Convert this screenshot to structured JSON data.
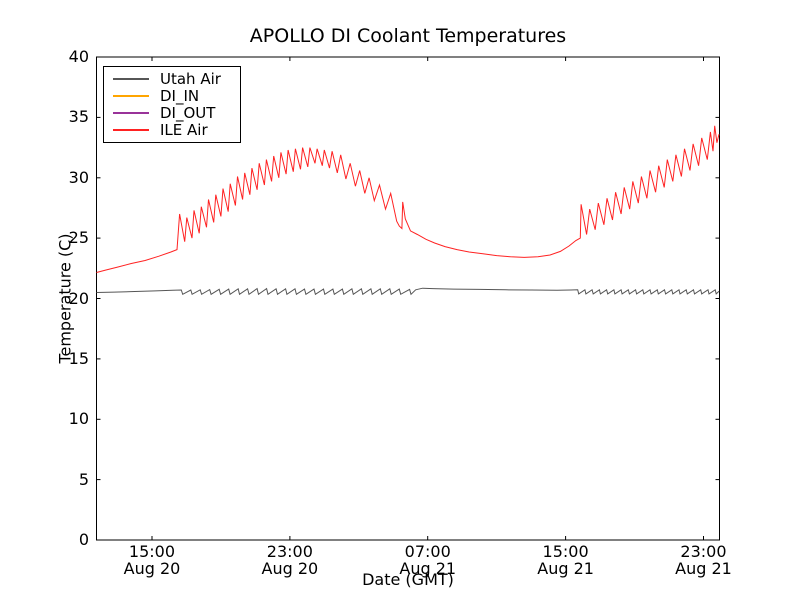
{
  "chart": {
    "title": "APOLLO DI Coolant Temperatures",
    "xlabel": "Date (GMT)",
    "ylabel": "Temperature (C)"
  },
  "legend": {
    "items": [
      {
        "label": "Utah Air",
        "color": "#565656"
      },
      {
        "label": "DI_IN",
        "color": "#ffa500"
      },
      {
        "label": "DI_OUT",
        "color": "#993399"
      },
      {
        "label": "ILE Air",
        "color": "#ff2222"
      }
    ]
  },
  "chart_data": {
    "type": "line",
    "title": "APOLLO DI Coolant Temperatures",
    "xlabel": "Date (GMT)",
    "ylabel": "Temperature (C)",
    "grid": false,
    "legend_position": "upper left",
    "ylim": [
      0,
      40
    ],
    "y_ticks": [
      0,
      5,
      10,
      15,
      20,
      25,
      30,
      35,
      40
    ],
    "x_units": "hours since Aug 20 00:00 GMT",
    "xlim_hours": [
      11.78,
      47.93
    ],
    "x_tick_hours": [
      15,
      23,
      31,
      39,
      47
    ],
    "x_ticks": [
      {
        "t": 15,
        "time": "15:00",
        "date": "Aug 20"
      },
      {
        "t": 23,
        "time": "23:00",
        "date": "Aug 20"
      },
      {
        "t": 31,
        "time": "07:00",
        "date": "Aug 21"
      },
      {
        "t": 39,
        "time": "15:00",
        "date": "Aug 21"
      },
      {
        "t": 47,
        "time": "23:00",
        "date": "Aug 21"
      }
    ],
    "series": [
      {
        "name": "Utah Air",
        "color": "#565656",
        "points": [
          [
            11.78,
            20.5
          ],
          [
            12.8,
            20.53
          ],
          [
            14.0,
            20.58
          ],
          [
            15.2,
            20.63
          ],
          [
            16.2,
            20.68
          ],
          [
            16.7,
            20.7
          ],
          [
            16.78,
            20.35
          ],
          [
            17.25,
            20.7
          ],
          [
            17.33,
            20.35
          ],
          [
            17.8,
            20.72
          ],
          [
            17.88,
            20.35
          ],
          [
            18.35,
            20.74
          ],
          [
            18.43,
            20.35
          ],
          [
            18.9,
            20.76
          ],
          [
            18.98,
            20.35
          ],
          [
            19.45,
            20.78
          ],
          [
            19.53,
            20.35
          ],
          [
            20.0,
            20.8
          ],
          [
            20.08,
            20.35
          ],
          [
            20.55,
            20.8
          ],
          [
            20.63,
            20.35
          ],
          [
            21.1,
            20.82
          ],
          [
            21.18,
            20.35
          ],
          [
            21.65,
            20.82
          ],
          [
            21.73,
            20.35
          ],
          [
            22.2,
            20.8
          ],
          [
            22.28,
            20.35
          ],
          [
            22.75,
            20.8
          ],
          [
            22.83,
            20.35
          ],
          [
            23.3,
            20.8
          ],
          [
            23.38,
            20.35
          ],
          [
            23.85,
            20.78
          ],
          [
            23.93,
            20.35
          ],
          [
            24.4,
            20.78
          ],
          [
            24.48,
            20.35
          ],
          [
            24.95,
            20.78
          ],
          [
            25.03,
            20.35
          ],
          [
            25.5,
            20.78
          ],
          [
            25.58,
            20.35
          ],
          [
            26.05,
            20.78
          ],
          [
            26.13,
            20.35
          ],
          [
            26.6,
            20.8
          ],
          [
            26.68,
            20.35
          ],
          [
            27.15,
            20.8
          ],
          [
            27.23,
            20.35
          ],
          [
            27.7,
            20.8
          ],
          [
            27.78,
            20.35
          ],
          [
            28.25,
            20.8
          ],
          [
            28.33,
            20.35
          ],
          [
            28.8,
            20.8
          ],
          [
            28.88,
            20.35
          ],
          [
            29.35,
            20.78
          ],
          [
            29.43,
            20.35
          ],
          [
            29.95,
            20.75
          ],
          [
            30.03,
            20.35
          ],
          [
            30.3,
            20.72
          ],
          [
            30.7,
            20.85
          ],
          [
            31.3,
            20.82
          ],
          [
            32.5,
            20.78
          ],
          [
            34.0,
            20.75
          ],
          [
            35.5,
            20.72
          ],
          [
            37.0,
            20.7
          ],
          [
            38.5,
            20.68
          ],
          [
            39.3,
            20.7
          ],
          [
            39.7,
            20.72
          ],
          [
            39.76,
            20.38
          ],
          [
            40.12,
            20.72
          ],
          [
            40.18,
            20.38
          ],
          [
            40.54,
            20.72
          ],
          [
            40.6,
            20.38
          ],
          [
            40.96,
            20.72
          ],
          [
            41.02,
            20.38
          ],
          [
            41.38,
            20.72
          ],
          [
            41.44,
            20.38
          ],
          [
            41.8,
            20.72
          ],
          [
            41.86,
            20.38
          ],
          [
            42.22,
            20.72
          ],
          [
            42.28,
            20.38
          ],
          [
            42.64,
            20.72
          ],
          [
            42.7,
            20.38
          ],
          [
            43.06,
            20.72
          ],
          [
            43.12,
            20.38
          ],
          [
            43.48,
            20.72
          ],
          [
            43.54,
            20.38
          ],
          [
            43.9,
            20.72
          ],
          [
            43.96,
            20.38
          ],
          [
            44.32,
            20.72
          ],
          [
            44.38,
            20.38
          ],
          [
            44.74,
            20.72
          ],
          [
            44.8,
            20.38
          ],
          [
            45.16,
            20.72
          ],
          [
            45.22,
            20.38
          ],
          [
            45.58,
            20.72
          ],
          [
            45.64,
            20.38
          ],
          [
            46.0,
            20.72
          ],
          [
            46.06,
            20.38
          ],
          [
            46.42,
            20.72
          ],
          [
            46.48,
            20.38
          ],
          [
            46.84,
            20.72
          ],
          [
            46.9,
            20.38
          ],
          [
            47.26,
            20.72
          ],
          [
            47.32,
            20.38
          ],
          [
            47.68,
            20.72
          ],
          [
            47.74,
            20.38
          ],
          [
            47.9,
            20.6
          ]
        ]
      },
      {
        "name": "DI_IN",
        "color": "#ffa500",
        "points": []
      },
      {
        "name": "DI_OUT",
        "color": "#993399",
        "points": []
      },
      {
        "name": "ILE Air",
        "color": "#ff2222",
        "points": [
          [
            11.78,
            22.15
          ],
          [
            12.3,
            22.35
          ],
          [
            13.0,
            22.6
          ],
          [
            13.8,
            22.9
          ],
          [
            14.6,
            23.15
          ],
          [
            15.4,
            23.5
          ],
          [
            16.1,
            23.85
          ],
          [
            16.45,
            24.05
          ],
          [
            16.6,
            27.0
          ],
          [
            16.9,
            24.7
          ],
          [
            17.02,
            26.7
          ],
          [
            17.32,
            25.0
          ],
          [
            17.44,
            27.3
          ],
          [
            17.74,
            25.4
          ],
          [
            17.86,
            27.6
          ],
          [
            18.16,
            25.9
          ],
          [
            18.28,
            28.2
          ],
          [
            18.58,
            26.3
          ],
          [
            18.7,
            28.6
          ],
          [
            19.0,
            26.8
          ],
          [
            19.12,
            29.1
          ],
          [
            19.42,
            27.2
          ],
          [
            19.54,
            29.5
          ],
          [
            19.84,
            27.7
          ],
          [
            19.96,
            30.1
          ],
          [
            20.26,
            28.2
          ],
          [
            20.38,
            30.4
          ],
          [
            20.68,
            28.6
          ],
          [
            20.8,
            30.8
          ],
          [
            21.1,
            29.0
          ],
          [
            21.22,
            31.2
          ],
          [
            21.52,
            29.4
          ],
          [
            21.64,
            31.5
          ],
          [
            21.94,
            29.7
          ],
          [
            22.06,
            31.8
          ],
          [
            22.36,
            30.0
          ],
          [
            22.48,
            32.1
          ],
          [
            22.78,
            30.3
          ],
          [
            22.9,
            32.3
          ],
          [
            23.2,
            30.5
          ],
          [
            23.32,
            32.4
          ],
          [
            23.62,
            30.7
          ],
          [
            23.74,
            32.5
          ],
          [
            24.04,
            30.9
          ],
          [
            24.16,
            32.5
          ],
          [
            24.46,
            31.2
          ],
          [
            24.58,
            32.4
          ],
          [
            24.88,
            31.0
          ],
          [
            25.0,
            32.3
          ],
          [
            25.3,
            30.8
          ],
          [
            25.45,
            32.2
          ],
          [
            25.75,
            30.4
          ],
          [
            25.95,
            31.9
          ],
          [
            26.25,
            29.9
          ],
          [
            26.5,
            31.2
          ],
          [
            26.8,
            29.3
          ],
          [
            27.05,
            30.6
          ],
          [
            27.35,
            28.7
          ],
          [
            27.6,
            30.0
          ],
          [
            27.9,
            28.1
          ],
          [
            28.2,
            29.4
          ],
          [
            28.55,
            27.4
          ],
          [
            28.85,
            28.7
          ],
          [
            29.2,
            26.4
          ],
          [
            29.35,
            26.0
          ],
          [
            29.5,
            25.8
          ],
          [
            29.55,
            28.0
          ],
          [
            29.7,
            26.6
          ],
          [
            30.0,
            25.6
          ],
          [
            30.4,
            25.3
          ],
          [
            30.9,
            24.9
          ],
          [
            31.4,
            24.6
          ],
          [
            32.0,
            24.3
          ],
          [
            32.7,
            24.05
          ],
          [
            33.4,
            23.85
          ],
          [
            34.2,
            23.7
          ],
          [
            35.0,
            23.55
          ],
          [
            35.8,
            23.45
          ],
          [
            36.6,
            23.4
          ],
          [
            37.4,
            23.45
          ],
          [
            38.1,
            23.6
          ],
          [
            38.7,
            23.9
          ],
          [
            39.2,
            24.35
          ],
          [
            39.6,
            24.8
          ],
          [
            39.85,
            25.0
          ],
          [
            39.9,
            27.8
          ],
          [
            40.22,
            25.3
          ],
          [
            40.4,
            27.4
          ],
          [
            40.72,
            25.7
          ],
          [
            40.9,
            27.9
          ],
          [
            41.22,
            26.1
          ],
          [
            41.4,
            28.3
          ],
          [
            41.72,
            26.5
          ],
          [
            41.9,
            28.8
          ],
          [
            42.22,
            27.0
          ],
          [
            42.4,
            29.2
          ],
          [
            42.72,
            27.4
          ],
          [
            42.9,
            29.7
          ],
          [
            43.22,
            27.9
          ],
          [
            43.4,
            30.1
          ],
          [
            43.72,
            28.3
          ],
          [
            43.9,
            30.6
          ],
          [
            44.22,
            28.8
          ],
          [
            44.4,
            31.0
          ],
          [
            44.72,
            29.2
          ],
          [
            44.9,
            31.5
          ],
          [
            45.22,
            29.7
          ],
          [
            45.4,
            31.9
          ],
          [
            45.72,
            30.1
          ],
          [
            45.9,
            32.4
          ],
          [
            46.22,
            30.6
          ],
          [
            46.4,
            32.8
          ],
          [
            46.72,
            31.0
          ],
          [
            46.9,
            33.3
          ],
          [
            47.22,
            31.5
          ],
          [
            47.4,
            33.8
          ],
          [
            47.55,
            32.2
          ],
          [
            47.65,
            34.3
          ],
          [
            47.78,
            32.9
          ],
          [
            47.9,
            33.6
          ]
        ]
      }
    ]
  }
}
